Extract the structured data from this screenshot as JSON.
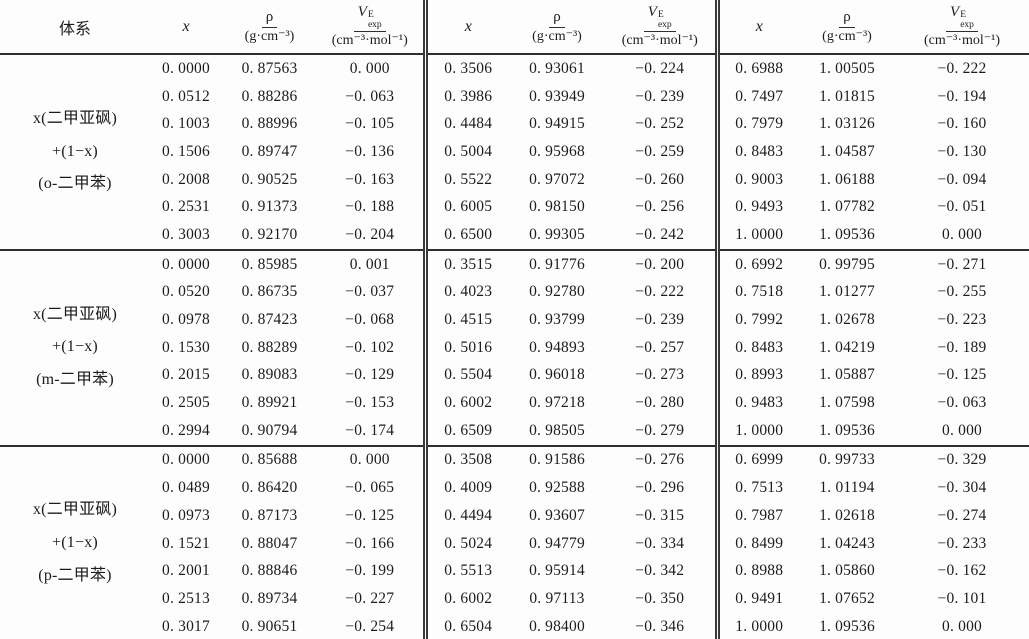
{
  "header": {
    "system": "体系",
    "x": "x",
    "rho_num": "ρ",
    "rho_den": "(g·cm⁻³)",
    "v_base": "V",
    "v_sup": "E",
    "v_sub": "exp",
    "v_den": "(cm⁻³·mol⁻¹)"
  },
  "groups": [
    {
      "label_lines": [
        "x(二甲亚砜)",
        "+(1−x)",
        "(o-二甲苯)"
      ],
      "rows": [
        [
          "0. 0000",
          "0. 87563",
          "0. 000",
          "0. 3506",
          "0. 93061",
          "−0. 224",
          "0. 6988",
          "1. 00505",
          "−0. 222"
        ],
        [
          "0. 0512",
          "0. 88286",
          "−0. 063",
          "0. 3986",
          "0. 93949",
          "−0. 239",
          "0. 7497",
          "1. 01815",
          "−0. 194"
        ],
        [
          "0. 1003",
          "0. 88996",
          "−0. 105",
          "0. 4484",
          "0. 94915",
          "−0. 252",
          "0. 7979",
          "1. 03126",
          "−0. 160"
        ],
        [
          "0. 1506",
          "0. 89747",
          "−0. 136",
          "0. 5004",
          "0. 95968",
          "−0. 259",
          "0. 8483",
          "1. 04587",
          "−0. 130"
        ],
        [
          "0. 2008",
          "0. 90525",
          "−0. 163",
          "0. 5522",
          "0. 97072",
          "−0. 260",
          "0. 9003",
          "1. 06188",
          "−0. 094"
        ],
        [
          "0. 2531",
          "0. 91373",
          "−0. 188",
          "0. 6005",
          "0. 98150",
          "−0. 256",
          "0. 9493",
          "1. 07782",
          "−0. 051"
        ],
        [
          "0. 3003",
          "0. 92170",
          "−0. 204",
          "0. 6500",
          "0. 99305",
          "−0. 242",
          "1. 0000",
          "1. 09536",
          "0. 000"
        ]
      ]
    },
    {
      "label_lines": [
        "x(二甲亚砜)",
        "+(1−x)",
        "(m-二甲苯)"
      ],
      "rows": [
        [
          "0. 0000",
          "0. 85985",
          "0. 001",
          "0. 3515",
          "0. 91776",
          "−0. 200",
          "0. 6992",
          "0. 99795",
          "−0. 271"
        ],
        [
          "0. 0520",
          "0. 86735",
          "−0. 037",
          "0. 4023",
          "0. 92780",
          "−0. 222",
          "0. 7518",
          "1. 01277",
          "−0. 255"
        ],
        [
          "0. 0978",
          "0. 87423",
          "−0. 068",
          "0. 4515",
          "0. 93799",
          "−0. 239",
          "0. 7992",
          "1. 02678",
          "−0. 223"
        ],
        [
          "0. 1530",
          "0. 88289",
          "−0. 102",
          "0. 5016",
          "0. 94893",
          "−0. 257",
          "0. 8483",
          "1. 04219",
          "−0. 189"
        ],
        [
          "0. 2015",
          "0. 89083",
          "−0. 129",
          "0. 5504",
          "0. 96018",
          "−0. 273",
          "0. 8993",
          "1. 05887",
          "−0. 125"
        ],
        [
          "0. 2505",
          "0. 89921",
          "−0. 153",
          "0. 6002",
          "0. 97218",
          "−0. 280",
          "0. 9483",
          "1. 07598",
          "−0. 063"
        ],
        [
          "0. 2994",
          "0. 90794",
          "−0. 174",
          "0. 6509",
          "0. 98505",
          "−0. 279",
          "1. 0000",
          "1. 09536",
          "0. 000"
        ]
      ]
    },
    {
      "label_lines": [
        "x(二甲亚砜)",
        "+(1−x)",
        "(p-二甲苯)"
      ],
      "rows": [
        [
          "0. 0000",
          "0. 85688",
          "0. 000",
          "0. 3508",
          "0. 91586",
          "−0. 276",
          "0. 6999",
          "0. 99733",
          "−0. 329"
        ],
        [
          "0. 0489",
          "0. 86420",
          "−0. 065",
          "0. 4009",
          "0. 92588",
          "−0. 296",
          "0. 7513",
          "1. 01194",
          "−0. 304"
        ],
        [
          "0. 0973",
          "0. 87173",
          "−0. 125",
          "0. 4494",
          "0. 93607",
          "−0. 315",
          "0. 7987",
          "1. 02618",
          "−0. 274"
        ],
        [
          "0. 1521",
          "0. 88047",
          "−0. 166",
          "0. 5024",
          "0. 94779",
          "−0. 334",
          "0. 8499",
          "1. 04243",
          "−0. 233"
        ],
        [
          "0. 2001",
          "0. 88846",
          "−0. 199",
          "0. 5513",
          "0. 95914",
          "−0. 342",
          "0. 8988",
          "1. 05860",
          "−0. 162"
        ],
        [
          "0. 2513",
          "0. 89734",
          "−0. 227",
          "0. 6002",
          "0. 97113",
          "−0. 350",
          "0. 9491",
          "1. 07652",
          "−0. 101"
        ],
        [
          "0. 3017",
          "0. 90651",
          "−0. 254",
          "0. 6504",
          "0. 98400",
          "−0. 346",
          "1. 0000",
          "1. 09536",
          "0. 000"
        ]
      ]
    }
  ]
}
